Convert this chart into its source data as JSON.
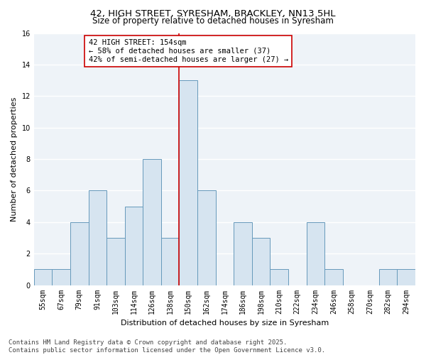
{
  "title1": "42, HIGH STREET, SYRESHAM, BRACKLEY, NN13 5HL",
  "title2": "Size of property relative to detached houses in Syresham",
  "xlabel": "Distribution of detached houses by size in Syresham",
  "ylabel": "Number of detached properties",
  "bins": [
    "55sqm",
    "67sqm",
    "79sqm",
    "91sqm",
    "103sqm",
    "114sqm",
    "126sqm",
    "138sqm",
    "150sqm",
    "162sqm",
    "174sqm",
    "186sqm",
    "198sqm",
    "210sqm",
    "222sqm",
    "234sqm",
    "246sqm",
    "258sqm",
    "270sqm",
    "282sqm",
    "294sqm"
  ],
  "values": [
    1,
    1,
    4,
    6,
    3,
    5,
    8,
    3,
    13,
    6,
    0,
    4,
    3,
    1,
    0,
    4,
    1,
    0,
    0,
    1,
    1
  ],
  "bar_color": "#d6e4f0",
  "bar_edge_color": "#6699bb",
  "highlight_bin_index": 8,
  "highlight_line_color": "#cc0000",
  "annotation_text": "42 HIGH STREET: 154sqm\n← 58% of detached houses are smaller (37)\n42% of semi-detached houses are larger (27) →",
  "annotation_box_color": "#ffffff",
  "annotation_box_edge": "#cc0000",
  "footer": "Contains HM Land Registry data © Crown copyright and database right 2025.\nContains public sector information licensed under the Open Government Licence v3.0.",
  "ylim": [
    0,
    16
  ],
  "yticks": [
    0,
    2,
    4,
    6,
    8,
    10,
    12,
    14,
    16
  ],
  "bg_color": "#ffffff",
  "plot_bg_color": "#eef3f8",
  "grid_color": "#ffffff",
  "title_fontsize": 9.5,
  "subtitle_fontsize": 8.5,
  "axis_label_fontsize": 8,
  "tick_fontsize": 7,
  "footer_fontsize": 6.5,
  "annotation_fontsize": 7.5
}
